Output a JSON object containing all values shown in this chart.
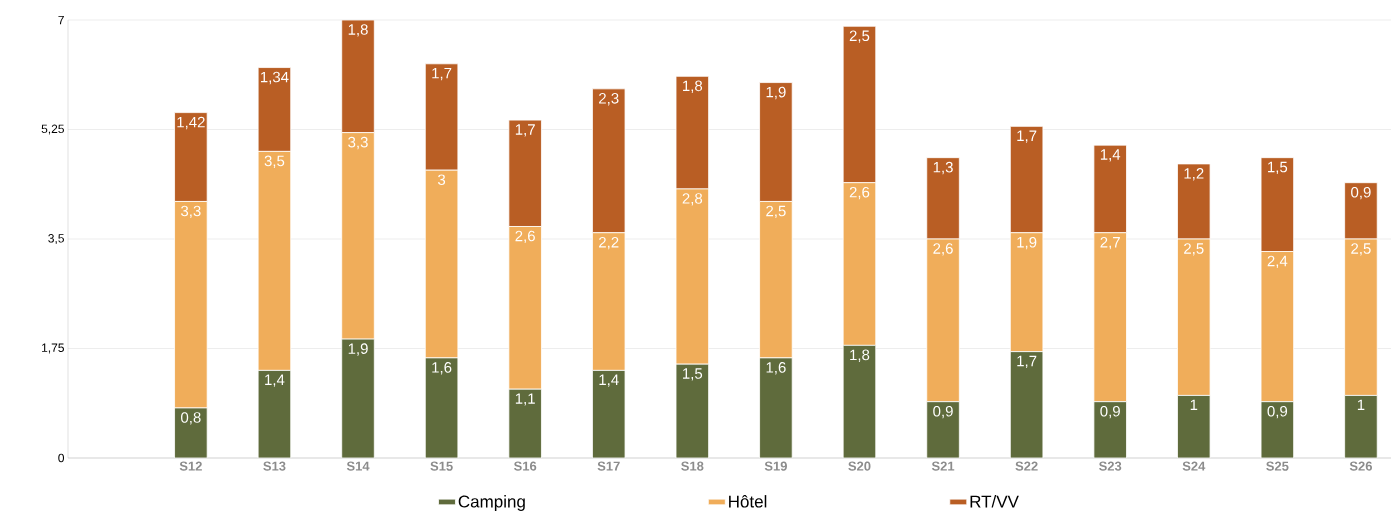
{
  "chart_data": {
    "type": "bar",
    "stacked": true,
    "categories": [
      null,
      "S12",
      "S13",
      "S14",
      "S15",
      "S16",
      "S17",
      "S18",
      "S19",
      "S20",
      "S21",
      "S22",
      "S23",
      "S24",
      "S25",
      "S26"
    ],
    "series": [
      {
        "name": "Camping",
        "color": "#5f6b3c",
        "values": [
          null,
          0.8,
          1.4,
          1.9,
          1.6,
          1.1,
          1.4,
          1.5,
          1.6,
          1.8,
          0.9,
          1.7,
          0.9,
          1,
          0.9,
          1
        ],
        "value_labels": [
          null,
          "0,8",
          "1,4",
          "1,9",
          "1,6",
          "1,1",
          "1,4",
          "1,5",
          "1,6",
          "1,8",
          "0,9",
          "1,7",
          "0,9",
          "1",
          "0,9",
          "1"
        ]
      },
      {
        "name": "Hôtel",
        "color": "#f0ad5a",
        "values": [
          null,
          3.3,
          3.5,
          3.3,
          3,
          2.6,
          2.2,
          2.8,
          2.5,
          2.6,
          2.6,
          1.9,
          2.7,
          2.5,
          2.4,
          2.5
        ],
        "value_labels": [
          null,
          "3,3",
          "3,5",
          "3,3",
          "3",
          "2,6",
          "2,2",
          "2,8",
          "2,5",
          "2,6",
          "2,6",
          "1,9",
          "2,7",
          "2,5",
          "2,4",
          "2,5"
        ]
      },
      {
        "name": "RT/VV",
        "color": "#b95e24",
        "values": [
          null,
          1.42,
          1.34,
          1.8,
          1.7,
          1.7,
          2.3,
          1.8,
          1.9,
          2.5,
          1.3,
          1.7,
          1.4,
          1.2,
          1.5,
          0.9
        ],
        "value_labels": [
          null,
          "1,42",
          "1,34",
          "1,8",
          "1,7",
          "1,7",
          "2,3",
          "1,8",
          "1,9",
          "2,5",
          "1,3",
          "1,7",
          "1,4",
          "1,2",
          "1,5",
          "0,9"
        ]
      }
    ],
    "ylim": [
      0,
      7
    ],
    "yticks": [
      0,
      {
        "value": 1.75,
        "label": "1,75"
      },
      {
        "value": 3.5,
        "label": "3,5"
      },
      {
        "value": 5.25,
        "label": "5,25"
      },
      7
    ],
    "grid": "y",
    "legend": "bottom"
  }
}
